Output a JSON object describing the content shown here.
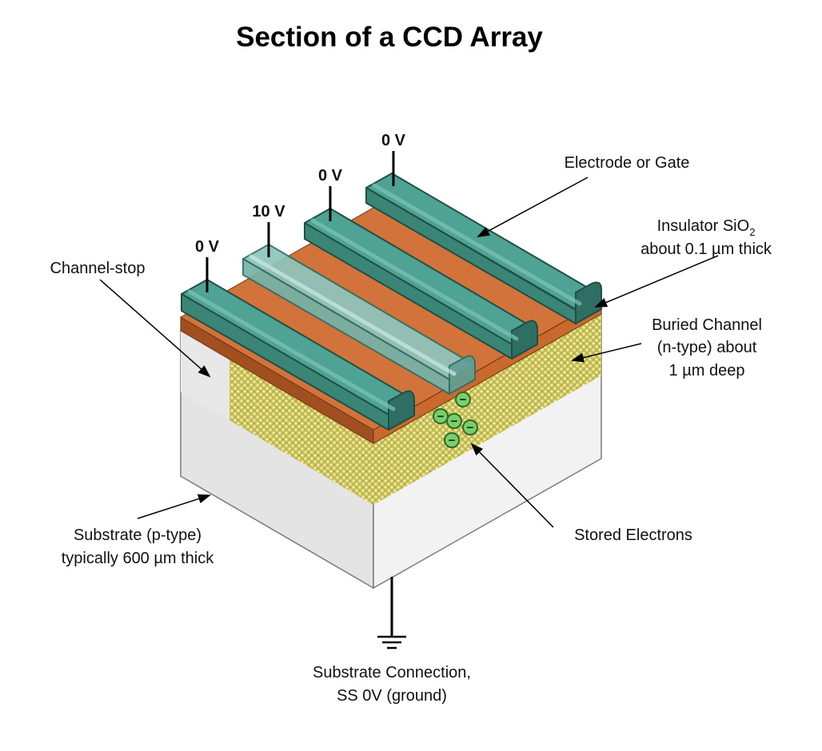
{
  "title": "Section of a CCD Array",
  "labels": {
    "electrode": "Electrode or Gate",
    "insulator_line1": "Insulator SiO",
    "insulator_sub": "2",
    "insulator_line2": "about 0.1 µm thick",
    "buried_line1": "Buried Channel",
    "buried_line2": "(n-type) about",
    "buried_line3": "1 µm deep",
    "channel_stop": "Channel-stop",
    "substrate_line1": "Substrate (p-type)",
    "substrate_line2": "typically 600 µm thick",
    "stored": "Stored Electrons",
    "connection_line1": "Substrate Connection,",
    "connection_line2": "SS 0V (ground)"
  },
  "gates": [
    {
      "voltage": "0 V",
      "active": false
    },
    {
      "voltage": "10 V",
      "active": true
    },
    {
      "voltage": "0 V",
      "active": false
    },
    {
      "voltage": "0 V",
      "active": false
    }
  ],
  "electron_sign": "−",
  "colors": {
    "gate": "#4fa394",
    "gate_dark": "#2f6f63",
    "gate_active": "#84bdb4",
    "oxide": "#c8692d",
    "oxide_dark": "#9c4a1d",
    "channel": "#c9c25a",
    "substrate_front": "#f0f0f0",
    "substrate_side": "#e2e2e2",
    "electron": "#7ccd6b"
  }
}
